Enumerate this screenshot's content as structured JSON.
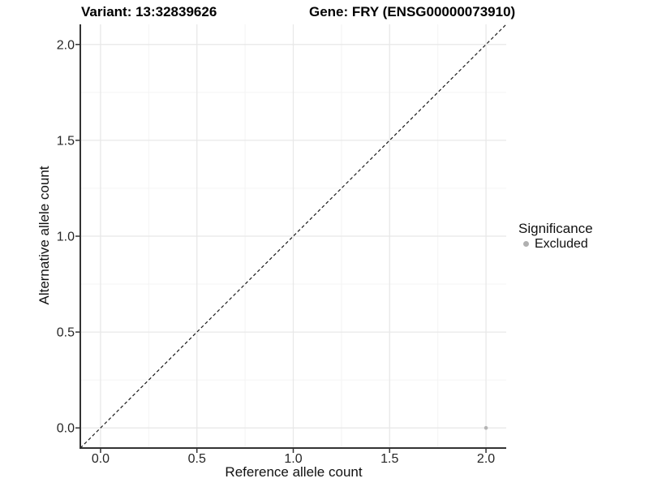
{
  "chart_data": {
    "type": "scatter",
    "titles": {
      "left": "Variant: 13:32839626",
      "right": "Gene: FRY (ENSG00000073910)"
    },
    "xlabel": "Reference allele count",
    "ylabel": "Alternative allele count",
    "xlim": [
      -0.105,
      2.105
    ],
    "ylim": [
      -0.105,
      2.105
    ],
    "x_ticks": {
      "values": [
        0,
        0.5,
        1,
        1.5,
        2
      ],
      "labels": [
        "0.0",
        "0.5",
        "1.0",
        "1.5",
        "2.0"
      ]
    },
    "y_ticks": {
      "values": [
        0,
        0.5,
        1,
        1.5,
        2
      ],
      "labels": [
        "0.0",
        "0.5",
        "1.0",
        "1.5",
        "2.0"
      ]
    },
    "minor_grid": [
      0.25,
      0.75,
      1.25,
      1.75
    ],
    "grid": {
      "major": true,
      "minor": true
    },
    "reference_line": {
      "type": "identity",
      "style": "dashed",
      "from": [
        -0.105,
        -0.105
      ],
      "to": [
        2.105,
        2.105
      ],
      "color": "#1a1a1a"
    },
    "series": [
      {
        "name": "Excluded",
        "color": "#b5b5b5",
        "points": [
          {
            "x": 2.0,
            "y": 0.0
          }
        ]
      }
    ],
    "legend": {
      "title": "Significance",
      "position": "right",
      "items": [
        {
          "label": "Excluded",
          "color": "#b0b0b0",
          "marker": "circle-icon"
        }
      ]
    }
  },
  "colors": {
    "background": "#ffffff",
    "grid_major": "#e8e8e8",
    "grid_minor": "#f4f4f4",
    "axis_line": "#333333",
    "tick_mark": "#333333",
    "tick_label": "#262626"
  }
}
